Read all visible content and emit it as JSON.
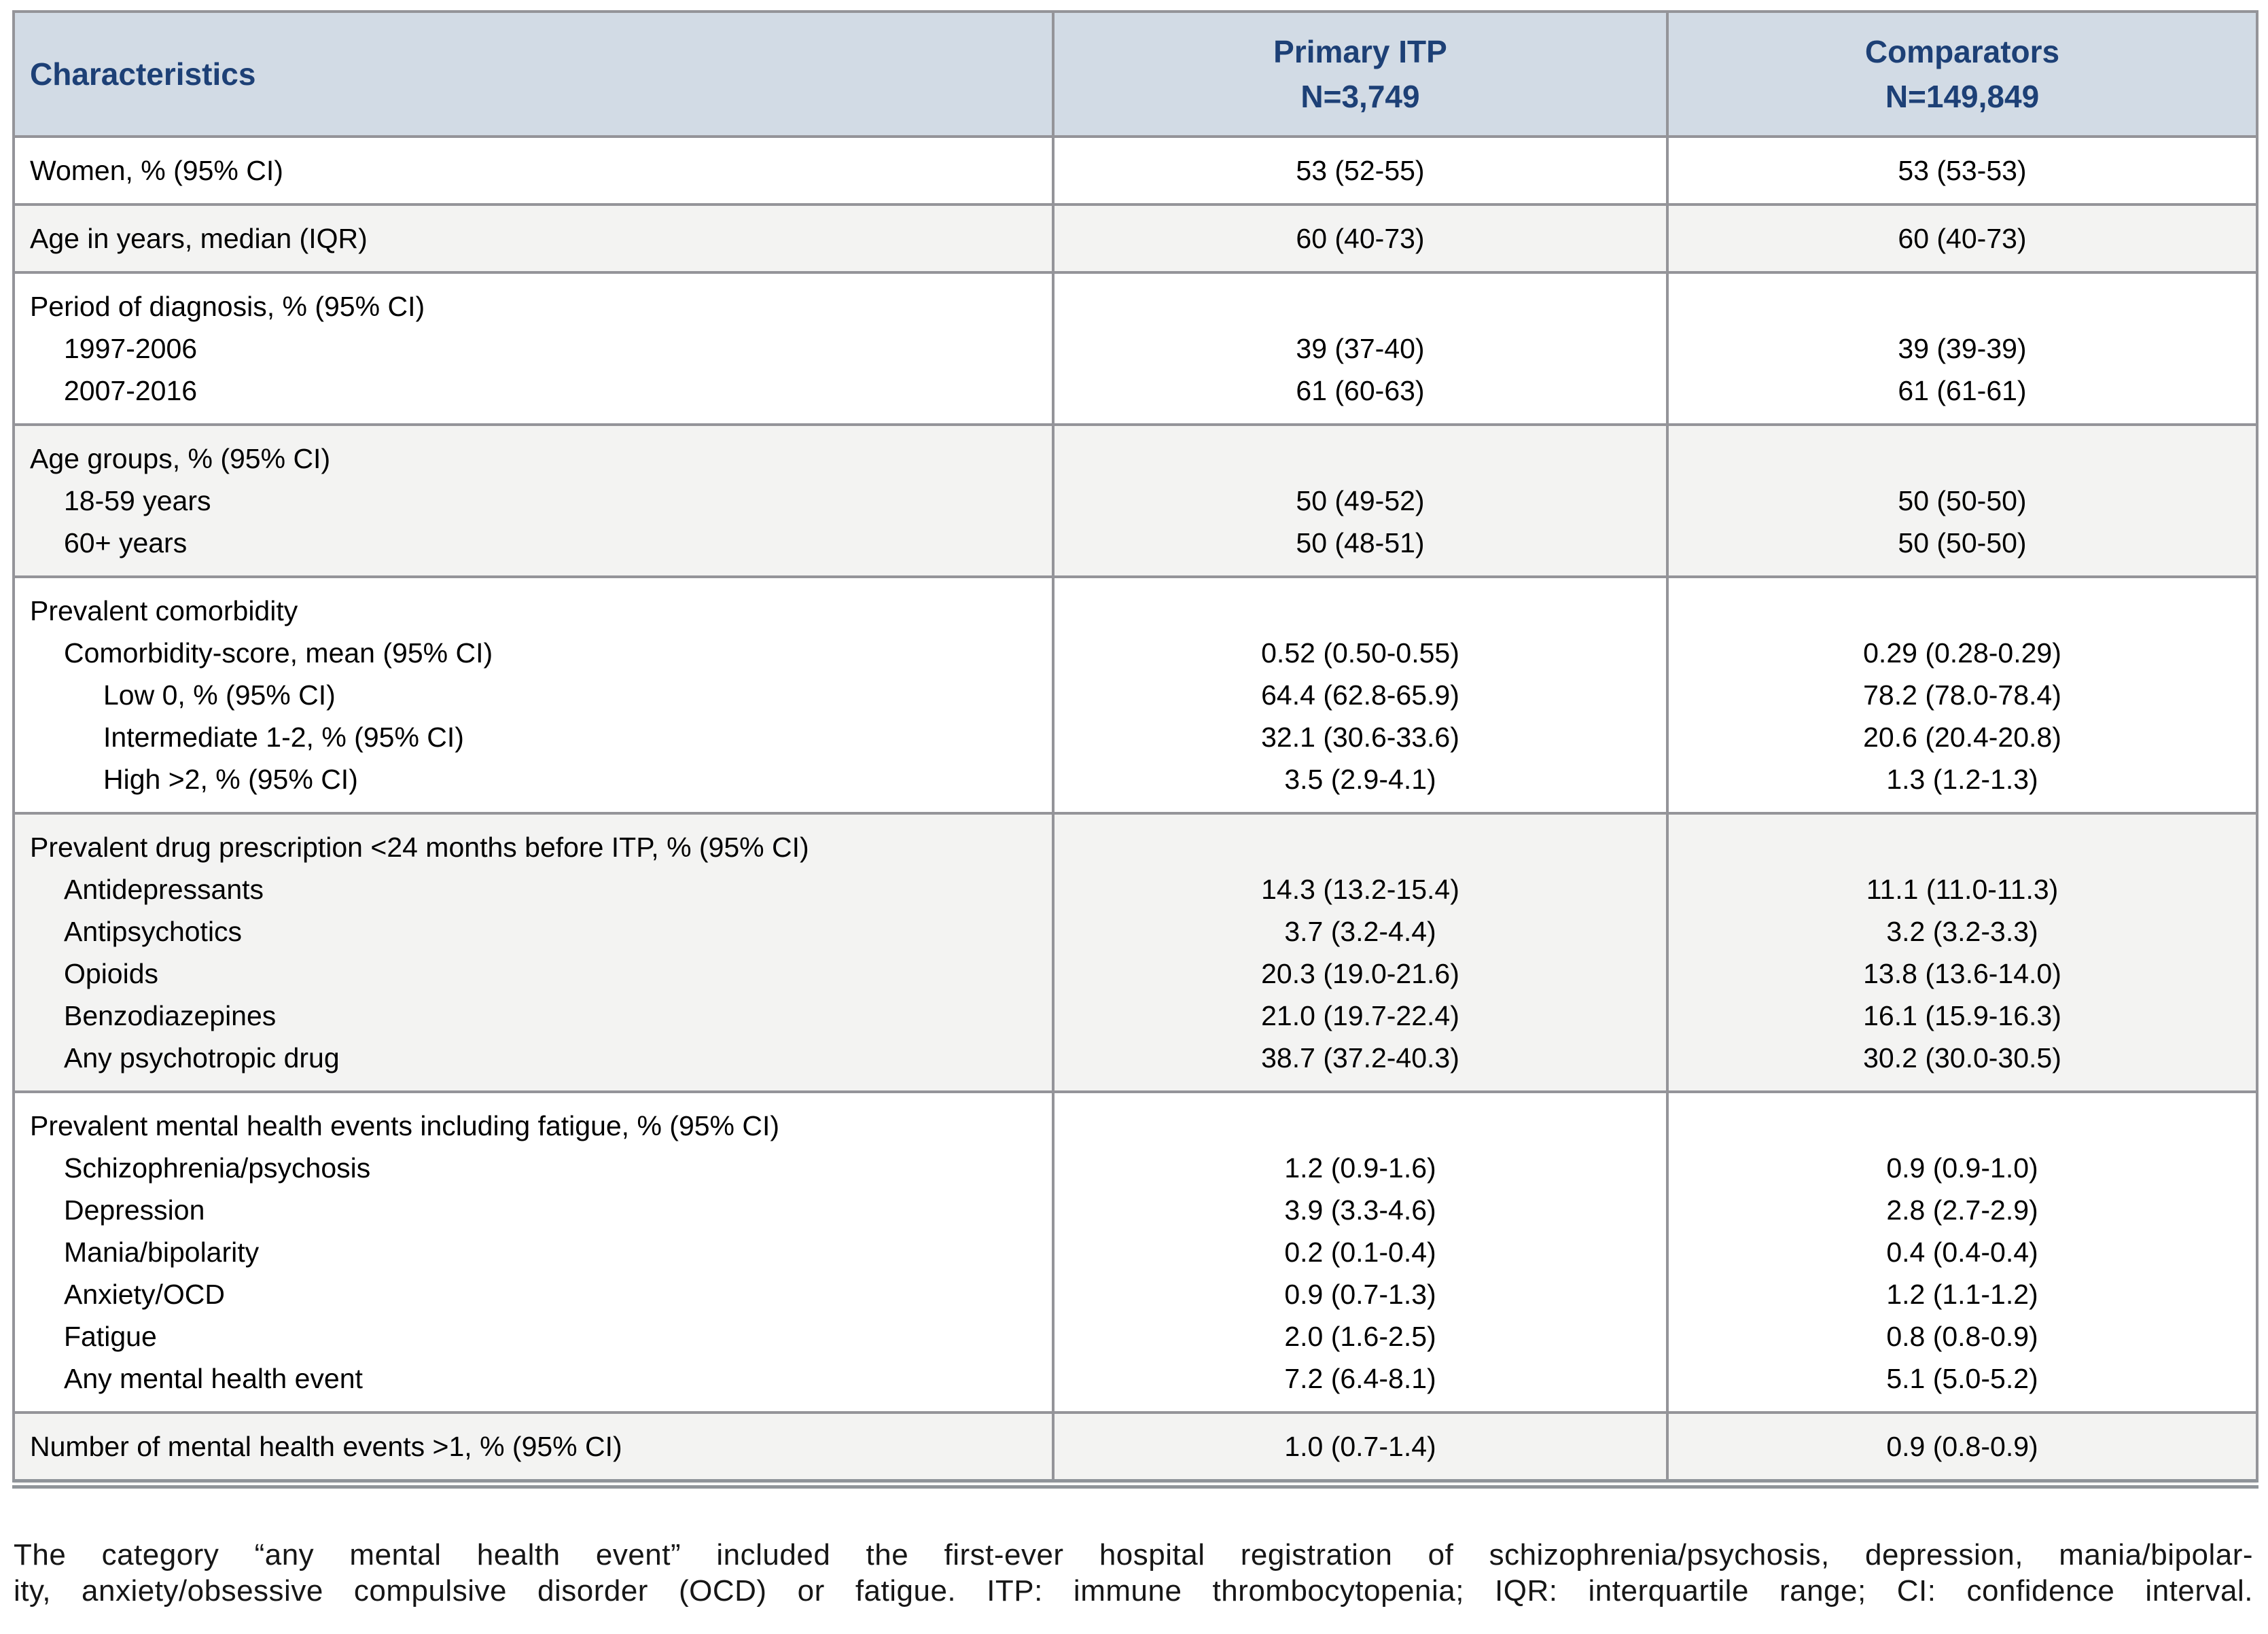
{
  "colors": {
    "header_bg": "#d2dbe5",
    "header_text": "#1d4076",
    "alt_row_bg": "#f3f3f2",
    "border": "#949499",
    "body_text": "#000000"
  },
  "table": {
    "header": {
      "characteristics": "Characteristics",
      "primary_itp": {
        "line1": "Primary ITP",
        "line2": "N=3,749"
      },
      "comparators": {
        "line1": "Comparators",
        "line2": "N=149,849"
      }
    },
    "sections": {
      "women": {
        "label": "Women, % (95% CI)",
        "itp": "53 (52-55)",
        "comp": "53 (53-53)"
      },
      "age": {
        "label": "Age in years, median (IQR)",
        "itp": "60 (40-73)",
        "comp": "60 (40-73)"
      },
      "period": {
        "title": "Period of diagnosis, % (95% CI)",
        "row1": {
          "label": "1997-2006",
          "itp": "39 (37-40)",
          "comp": "39 (39-39)"
        },
        "row2": {
          "label": "2007-2016",
          "itp": "61 (60-63)",
          "comp": "61 (61-61)"
        }
      },
      "agegroups": {
        "title": "Age groups, % (95% CI)",
        "row1": {
          "label": "18-59 years",
          "itp": "50 (49-52)",
          "comp": "50 (50-50)"
        },
        "row2": {
          "label": "60+ years",
          "itp": "50 (48-51)",
          "comp": "50 (50-50)"
        }
      },
      "comorbidity": {
        "title": "Prevalent comorbidity",
        "row1": {
          "label": "Comorbidity-score, mean (95% CI)",
          "itp": "0.52 (0.50-0.55)",
          "comp": "0.29 (0.28-0.29)"
        },
        "row2": {
          "label": "Low 0, % (95% CI)",
          "itp": "64.4 (62.8-65.9)",
          "comp": "78.2 (78.0-78.4)"
        },
        "row3": {
          "label": "Intermediate 1-2, % (95% CI)",
          "itp": "32.1 (30.6-33.6)",
          "comp": "20.6 (20.4-20.8)"
        },
        "row4": {
          "label": "High >2, % (95% CI)",
          "itp": "3.5 (2.9-4.1)",
          "comp": "1.3 (1.2-1.3)"
        }
      },
      "drugs": {
        "title": "Prevalent drug prescription <24 months before ITP, % (95% CI)",
        "row1": {
          "label": "Antidepressants",
          "itp": "14.3 (13.2-15.4)",
          "comp": "11.1 (11.0-11.3)"
        },
        "row2": {
          "label": "Antipsychotics",
          "itp": "3.7 (3.2-4.4)",
          "comp": "3.2 (3.2-3.3)"
        },
        "row3": {
          "label": "Opioids",
          "itp": "20.3 (19.0-21.6)",
          "comp": "13.8 (13.6-14.0)"
        },
        "row4": {
          "label": "Benzodiazepines",
          "itp": "21.0 (19.7-22.4)",
          "comp": "16.1 (15.9-16.3)"
        },
        "row5": {
          "label": "Any psychotropic drug",
          "itp": "38.7 (37.2-40.3)",
          "comp": "30.2 (30.0-30.5)"
        }
      },
      "mental": {
        "title": "Prevalent mental health events including fatigue, % (95% CI)",
        "row1": {
          "label": "Schizophrenia/psychosis",
          "itp": "1.2 (0.9-1.6)",
          "comp": "0.9 (0.9-1.0)"
        },
        "row2": {
          "label": "Depression",
          "itp": "3.9 (3.3-4.6)",
          "comp": "2.8 (2.7-2.9)"
        },
        "row3": {
          "label": "Mania/bipolarity",
          "itp": "0.2 (0.1-0.4)",
          "comp": "0.4 (0.4-0.4)"
        },
        "row4": {
          "label": "Anxiety/OCD",
          "itp": "0.9 (0.7-1.3)",
          "comp": "1.2 (1.1-1.2)"
        },
        "row5": {
          "label": "Fatigue",
          "itp": "2.0 (1.6-2.5)",
          "comp": "0.8 (0.8-0.9)"
        },
        "row6": {
          "label": "Any mental health event",
          "itp": "7.2 (6.4-8.1)",
          "comp": "5.1 (5.0-5.2)"
        }
      },
      "events": {
        "label": "Number of mental health events >1, % (95% CI)",
        "itp": "1.0 (0.7-1.4)",
        "comp": "0.9 (0.8-0.9)"
      }
    }
  },
  "footnote": {
    "line1": "The category “any mental health event” included the first-ever hospital registration of schizophrenia/psychosis, depression, mania/bipolar-",
    "line2": "ity, anxiety/obsessive compulsive disorder (OCD) or fatigue. ITP: immune thrombocytopenia; IQR: interquartile range; CI: confidence interval."
  }
}
